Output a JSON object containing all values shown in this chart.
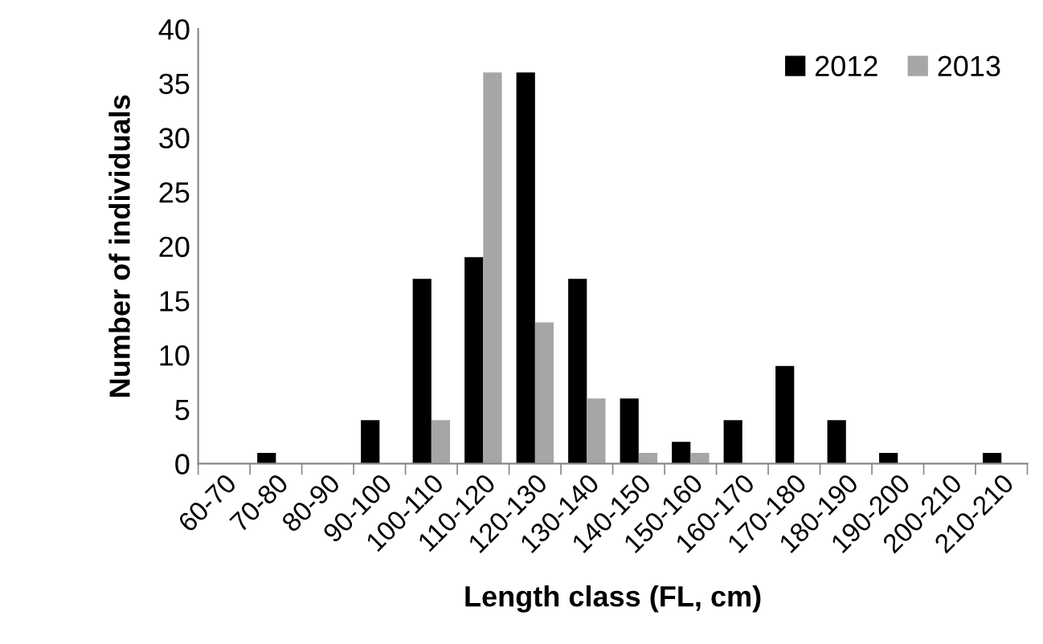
{
  "chart_data": {
    "type": "bar",
    "xlabel": "Length class (FL, cm)",
    "ylabel": "Number of individuals",
    "categories": [
      "60-70",
      "70-80",
      "80-90",
      "90-100",
      "100-110",
      "110-120",
      "120-130",
      "130-140",
      "140-150",
      "150-160",
      "160-170",
      "170-180",
      "180-190",
      "190-200",
      "200-210",
      "210-210"
    ],
    "series": [
      {
        "name": "2012",
        "color": "#000000",
        "values": [
          0,
          1,
          0,
          4,
          17,
          19,
          36,
          17,
          6,
          2,
          4,
          9,
          4,
          1,
          0,
          1
        ]
      },
      {
        "name": "2013",
        "color": "#a6a6a6",
        "values": [
          0,
          0,
          0,
          0,
          4,
          36,
          13,
          6,
          1,
          1,
          0,
          0,
          0,
          0,
          0,
          0
        ]
      }
    ],
    "ylim": [
      0,
      40
    ],
    "yticks": [
      0,
      5,
      10,
      15,
      20,
      25,
      30,
      35,
      40
    ],
    "grid": false,
    "legend": "top right"
  }
}
